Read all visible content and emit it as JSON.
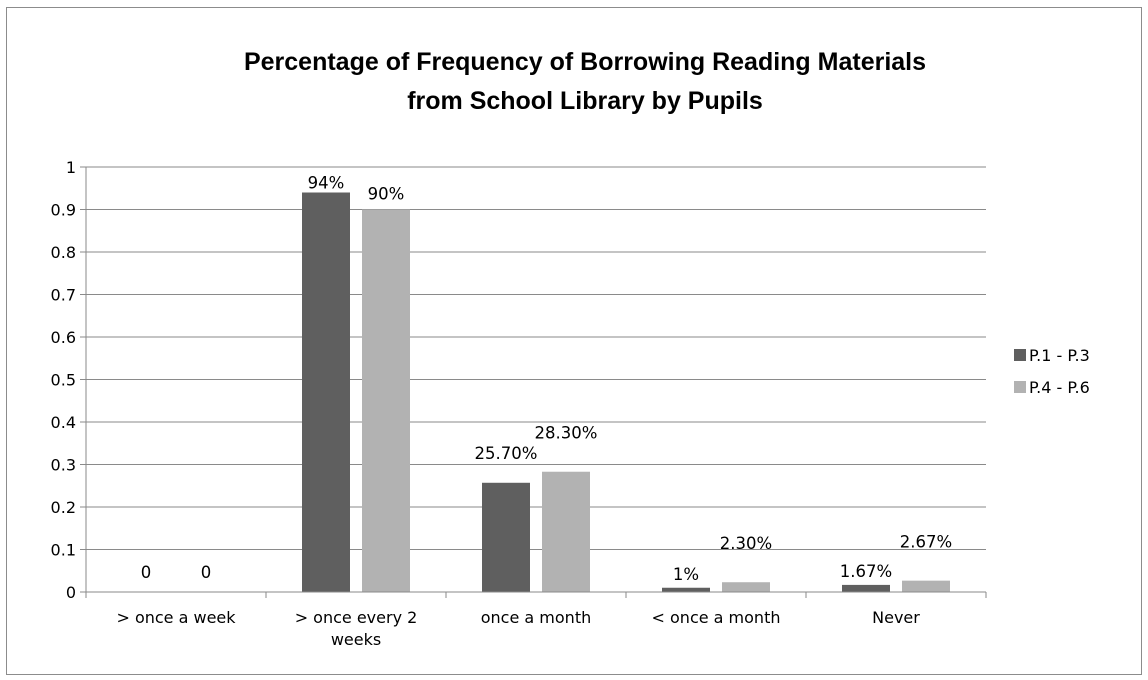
{
  "chart_data": {
    "type": "bar",
    "title_lines": [
      "Percentage of Frequency of Borrowing Reading Materials",
      "from School Library by Pupils"
    ],
    "categories": [
      [
        "> once a week"
      ],
      [
        "> once every  2",
        "weeks"
      ],
      [
        "once a month"
      ],
      [
        "< once  a month"
      ],
      [
        "Never"
      ]
    ],
    "series": [
      {
        "name": "P.1 - P.3",
        "color": "#5f5f5f",
        "values": [
          0,
          0.94,
          0.257,
          0.01,
          0.0167
        ],
        "labels": [
          "0",
          "94%",
          "25.70%",
          "1%",
          "1.67%"
        ]
      },
      {
        "name": "P.4 - P.6",
        "color": "#b2b2b2",
        "values": [
          0,
          0.9,
          0.283,
          0.023,
          0.0267
        ],
        "labels": [
          "0",
          "90%",
          "28.30%",
          "2.30%",
          "2.67%"
        ]
      }
    ],
    "y_ticks": [
      "0",
      "0.1",
      "0.2",
      "0.3",
      "0.4",
      "0.5",
      "0.6",
      "0.7",
      "0.8",
      "0.9",
      "1"
    ],
    "ylim": [
      0,
      1
    ],
    "grid": true,
    "legend_position": "right"
  }
}
